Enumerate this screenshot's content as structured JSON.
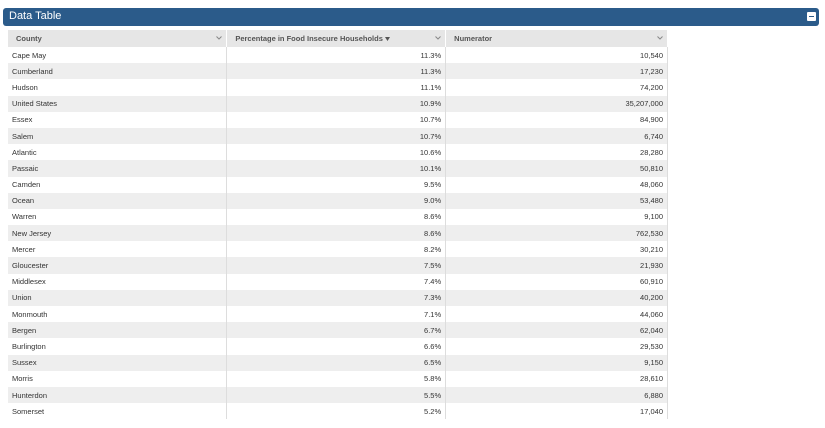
{
  "header": {
    "title": "Data Table"
  },
  "table": {
    "columns": [
      "County",
      "Percentage in Food Insecure Households",
      "Numerator"
    ],
    "rows": [
      [
        "Cape May",
        "11.3%",
        "10,540"
      ],
      [
        "Cumberland",
        "11.3%",
        "17,230"
      ],
      [
        "Hudson",
        "11.1%",
        "74,200"
      ],
      [
        "United States",
        "10.9%",
        "35,207,000"
      ],
      [
        "Essex",
        "10.7%",
        "84,900"
      ],
      [
        "Salem",
        "10.7%",
        "6,740"
      ],
      [
        "Atlantic",
        "10.6%",
        "28,280"
      ],
      [
        "Passaic",
        "10.1%",
        "50,810"
      ],
      [
        "Camden",
        "9.5%",
        "48,060"
      ],
      [
        "Ocean",
        "9.0%",
        "53,480"
      ],
      [
        "Warren",
        "8.6%",
        "9,100"
      ],
      [
        "New Jersey",
        "8.6%",
        "762,530"
      ],
      [
        "Mercer",
        "8.2%",
        "30,210"
      ],
      [
        "Gloucester",
        "7.5%",
        "21,930"
      ],
      [
        "Middlesex",
        "7.4%",
        "60,910"
      ],
      [
        "Union",
        "7.3%",
        "40,200"
      ],
      [
        "Monmouth",
        "7.1%",
        "44,060"
      ],
      [
        "Bergen",
        "6.7%",
        "62,040"
      ],
      [
        "Burlington",
        "6.6%",
        "29,530"
      ],
      [
        "Sussex",
        "6.5%",
        "9,150"
      ],
      [
        "Morris",
        "5.8%",
        "28,610"
      ],
      [
        "Hunterdon",
        "5.5%",
        "6,880"
      ],
      [
        "Somerset",
        "5.2%",
        "17,040"
      ]
    ]
  }
}
